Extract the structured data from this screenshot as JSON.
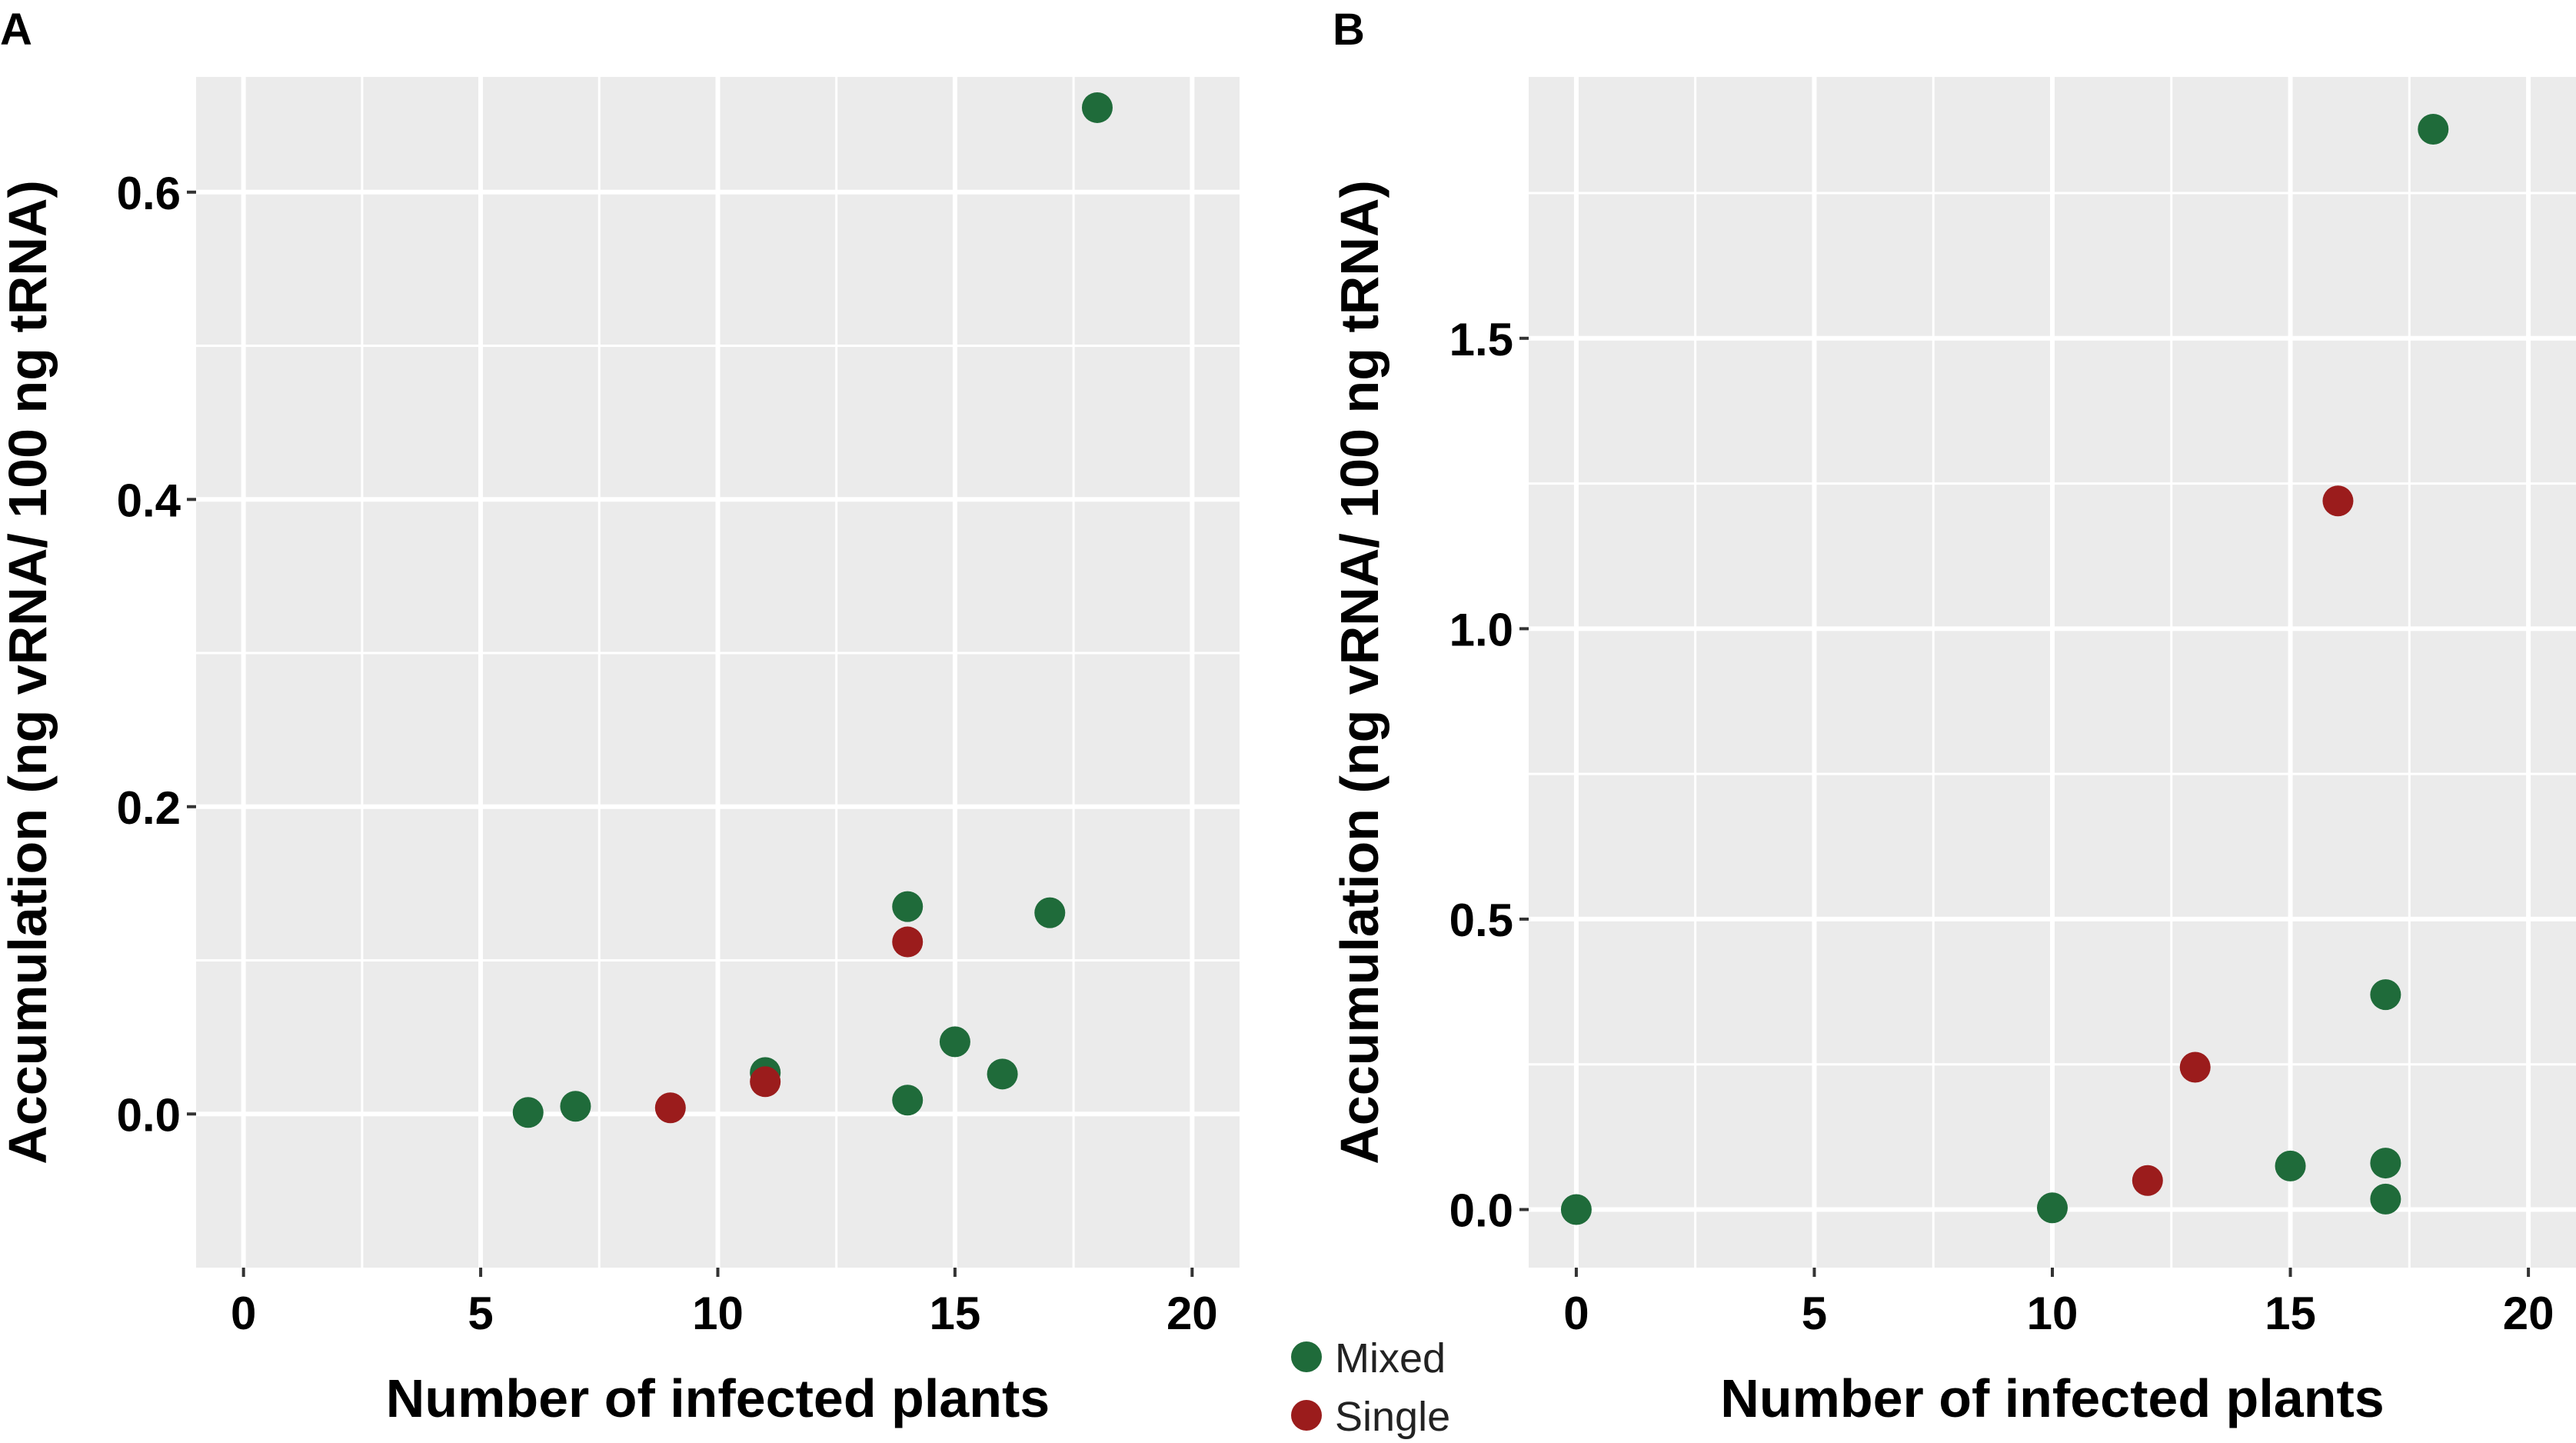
{
  "legend": {
    "items": [
      {
        "label": "Mixed",
        "color": "#1f6b3a"
      },
      {
        "label": "Single",
        "color": "#9b1c1c"
      }
    ]
  },
  "chart_data": [
    {
      "panel_label": "A",
      "type": "scatter",
      "xlabel": "Number of infected plants",
      "ylabel": "Accumulation (ng vRNA/ 100 ng tRNA)",
      "xlim": [
        -1,
        21
      ],
      "ylim": [
        -0.1,
        0.675
      ],
      "x_ticks": [
        {
          "value": 0,
          "label": "0"
        },
        {
          "value": 5,
          "label": "5"
        },
        {
          "value": 10,
          "label": "10"
        },
        {
          "value": 15,
          "label": "15"
        },
        {
          "value": 20,
          "label": "20"
        }
      ],
      "y_ticks": [
        {
          "value": 0.0,
          "label": "0.0"
        },
        {
          "value": 0.2,
          "label": "0.2"
        },
        {
          "value": 0.4,
          "label": "0.4"
        },
        {
          "value": 0.6,
          "label": "0.6"
        }
      ],
      "series": [
        {
          "name": "Mixed",
          "color": "#1f6b3a",
          "points": [
            {
              "x": 6,
              "y": 0.001
            },
            {
              "x": 7,
              "y": 0.005
            },
            {
              "x": 11,
              "y": 0.027
            },
            {
              "x": 14,
              "y": 0.135
            },
            {
              "x": 14,
              "y": 0.009
            },
            {
              "x": 15,
              "y": 0.047
            },
            {
              "x": 16,
              "y": 0.026
            },
            {
              "x": 17,
              "y": 0.131
            },
            {
              "x": 18,
              "y": 0.655
            }
          ]
        },
        {
          "name": "Single",
          "color": "#9b1c1c",
          "points": [
            {
              "x": 9,
              "y": 0.004
            },
            {
              "x": 11,
              "y": 0.021
            },
            {
              "x": 14,
              "y": 0.112
            }
          ]
        }
      ]
    },
    {
      "panel_label": "B",
      "type": "scatter",
      "xlabel": "Number of infected plants",
      "ylabel": "Accumulation (ng vRNA/ 100 ng tRNA)",
      "xlim": [
        -1,
        21
      ],
      "ylim": [
        -0.1,
        1.95
      ],
      "x_ticks": [
        {
          "value": 0,
          "label": "0"
        },
        {
          "value": 5,
          "label": "5"
        },
        {
          "value": 10,
          "label": "10"
        },
        {
          "value": 15,
          "label": "15"
        },
        {
          "value": 20,
          "label": "20"
        }
      ],
      "y_ticks": [
        {
          "value": 0.0,
          "label": "0.0"
        },
        {
          "value": 0.5,
          "label": "0.5"
        },
        {
          "value": 1.0,
          "label": "1.0"
        },
        {
          "value": 1.5,
          "label": "1.5"
        }
      ],
      "series": [
        {
          "name": "Mixed",
          "color": "#1f6b3a",
          "points": [
            {
              "x": 0,
              "y": 0.0
            },
            {
              "x": 10,
              "y": 0.003
            },
            {
              "x": 15,
              "y": 0.075
            },
            {
              "x": 17,
              "y": 0.37
            },
            {
              "x": 17,
              "y": 0.08
            },
            {
              "x": 17,
              "y": 0.018
            },
            {
              "x": 18,
              "y": 1.86
            }
          ]
        },
        {
          "name": "Single",
          "color": "#9b1c1c",
          "points": [
            {
              "x": 12,
              "y": 0.05
            },
            {
              "x": 13,
              "y": 0.245
            },
            {
              "x": 16,
              "y": 1.22
            }
          ]
        }
      ]
    }
  ]
}
